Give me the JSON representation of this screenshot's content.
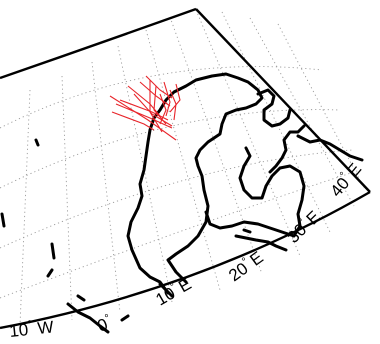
{
  "colors": {
    "background": "#ffffff",
    "frame": "#000000",
    "coastline": "#000000",
    "graticule": "#9a9a9a",
    "track": "#e8242a"
  },
  "map": {
    "projection": "conic",
    "graticule": "dotted",
    "longitude_labels": [
      {
        "deg": "10",
        "hemi": "W"
      },
      {
        "deg": "0",
        "hemi": ""
      },
      {
        "deg": "10",
        "hemi": "E"
      },
      {
        "deg": "20",
        "hemi": "E"
      },
      {
        "deg": "30",
        "hemi": "E"
      },
      {
        "deg": "40",
        "hemi": "E"
      }
    ],
    "degree_symbol": "°"
  }
}
